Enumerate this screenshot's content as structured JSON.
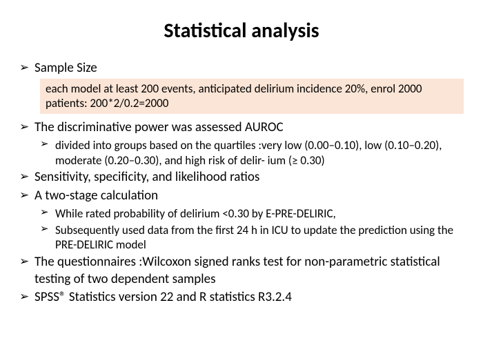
{
  "title": "Statistical analysis",
  "highlight_bg": "#fbe5d6",
  "items": {
    "sample_size": "Sample Size",
    "sample_size_detail": "each model at least 200 events, anticipated delirium incidence 20%, enrol 2000 patients: 200*2/0.2=2000",
    "auroc": "The discriminative power was assessed AUROC",
    "auroc_sub": "divided into groups based on the quartiles :very low (0.00–0.10), low (0.10–0.20), moderate (0.20–0.30), and high risk of delir- ium (≥ 0.30)",
    "sens_spec": "Sensitivity, specificity, and likelihood ratios",
    "two_stage": "A two-stage calculation",
    "two_stage_sub1": "While rated probability of delirium <0.30 by E-PRE-DELIRIC,",
    "two_stage_sub2": "Subsequently used data from the first 24 h in ICU to update the prediction using the PRE-DELIRIC model",
    "wilcoxon": "The questionnaires :Wilcoxon signed ranks test for non-parametric statistical testing of two dependent samples",
    "spss": "SPSS® Statistics version 22 and R statistics R3.2.4"
  }
}
